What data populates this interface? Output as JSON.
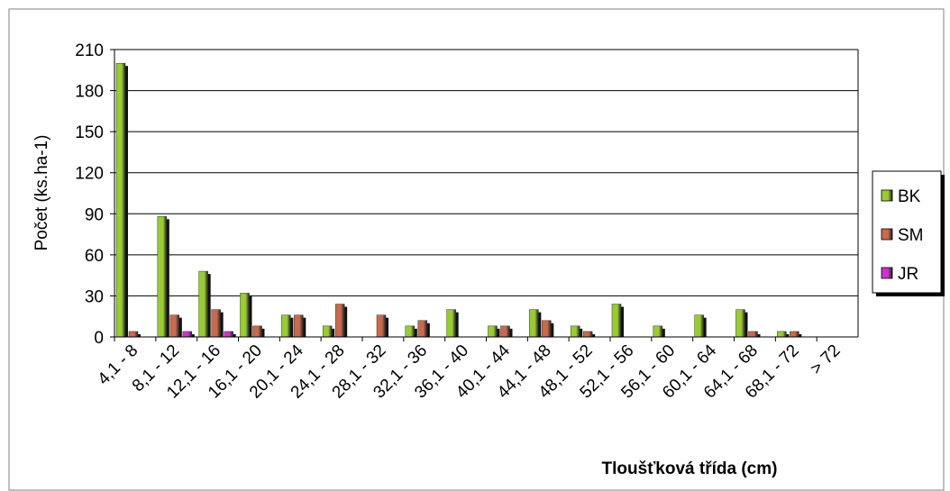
{
  "chart_data": {
    "type": "bar",
    "xlabel": "Tloušťková třída (cm)",
    "ylabel": "Počet (ks.ha-1)",
    "categories": [
      "4,1 - 8",
      "8,1 - 12",
      "12,1 - 16",
      "16,1 - 20",
      "20,1 - 24",
      "24,1 - 28",
      "28,1 - 32",
      "32,1 - 36",
      "36,1 - 40",
      "40,1 - 44",
      "44,1 - 48",
      "48,1 - 52",
      "52,1 - 56",
      "56,1 - 60",
      "60,1 - 64",
      "64,1 - 68",
      "68,1 - 72",
      "> 72"
    ],
    "series": [
      {
        "name": "BK",
        "color": "#99cc33",
        "values": [
          200,
          88,
          48,
          32,
          16,
          8,
          0,
          8,
          20,
          8,
          20,
          8,
          24,
          8,
          16,
          20,
          4,
          0
        ]
      },
      {
        "name": "SM",
        "color": "#c86a4e",
        "values": [
          4,
          16,
          20,
          8,
          16,
          24,
          16,
          12,
          0,
          8,
          12,
          4,
          0,
          0,
          0,
          4,
          4,
          0
        ]
      },
      {
        "name": "JR",
        "color": "#cc33cc",
        "values": [
          0,
          4,
          4,
          0,
          0,
          0,
          0,
          0,
          0,
          0,
          0,
          0,
          0,
          0,
          0,
          0,
          0,
          0
        ]
      }
    ],
    "ylim": [
      0,
      210
    ],
    "yticks": [
      0,
      30,
      60,
      90,
      120,
      150,
      180,
      210
    ],
    "grid": true,
    "legend": "right"
  }
}
